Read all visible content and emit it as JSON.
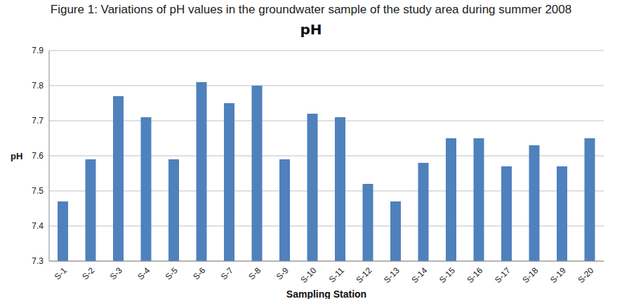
{
  "chart_data": {
    "type": "bar",
    "title": "Figure 1: Variations of pH values in the groundwater sample of the study area during summer 2008",
    "subtitle": "pH",
    "x_label": "Sampling Station",
    "y_label": "pH",
    "categories": [
      "S-1",
      "S-2",
      "S-3",
      "S-4",
      "S-5",
      "S-6",
      "S-7",
      "S-8",
      "S-9",
      "S-10",
      "S-11",
      "S-12",
      "S-13",
      "S-14",
      "S-15",
      "S-16",
      "S-17",
      "S-18",
      "S-19",
      "S-20"
    ],
    "values": [
      7.47,
      7.59,
      7.77,
      7.71,
      7.59,
      7.81,
      7.75,
      7.8,
      7.59,
      7.72,
      7.71,
      7.52,
      7.47,
      7.58,
      7.65,
      7.65,
      7.57,
      7.63,
      7.57,
      7.65
    ],
    "color": "#4f81bd",
    "ylim": [
      7.3,
      7.9
    ],
    "yticks": [
      7.3,
      7.4,
      7.5,
      7.6,
      7.7,
      7.8,
      7.9
    ],
    "grid": true
  }
}
